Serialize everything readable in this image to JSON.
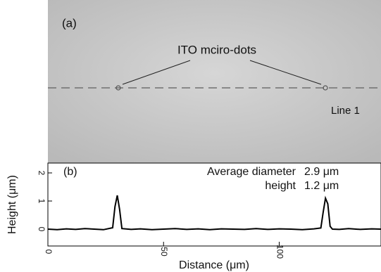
{
  "panel_a": {
    "label": "(a)",
    "annotation": "ITO mciro-dots",
    "line_label": "Line 1"
  },
  "chart_data": {
    "type": "line",
    "label": "(b)",
    "x_label": "Distance (μm)",
    "y_label": "Height (μm)",
    "annotations": [
      "Average diameter",
      "2.9 μm",
      "height",
      "1.2 μm"
    ],
    "x": [
      0,
      4,
      8,
      12,
      16,
      20,
      24,
      28,
      29,
      30,
      31,
      32,
      36,
      40,
      45,
      50,
      55,
      60,
      65,
      70,
      75,
      80,
      85,
      90,
      95,
      100,
      105,
      110,
      115,
      118,
      119,
      120,
      121,
      122,
      123,
      126,
      130,
      135,
      140,
      144
    ],
    "series": [
      {
        "color": "#000000",
        "values": [
          0,
          -0.02,
          0.01,
          -0.01,
          0.02,
          0,
          -0.02,
          0.05,
          0.8,
          1.2,
          0.7,
          0.02,
          -0.01,
          0.01,
          -0.02,
          0,
          0.02,
          -0.01,
          0.01,
          -0.02,
          0.01,
          0,
          -0.01,
          0.02,
          -0.01,
          0.01,
          0,
          -0.02,
          0.01,
          0.04,
          0.6,
          1.1,
          0.9,
          0.1,
          0,
          -0.01,
          0.02,
          -0.01,
          0.01,
          0
        ]
      }
    ],
    "xlim": [
      0,
      144
    ],
    "ylim": [
      -0.6,
      2.35
    ],
    "xticks": [
      0,
      50,
      100
    ],
    "yticks": [
      0,
      1,
      2
    ]
  }
}
